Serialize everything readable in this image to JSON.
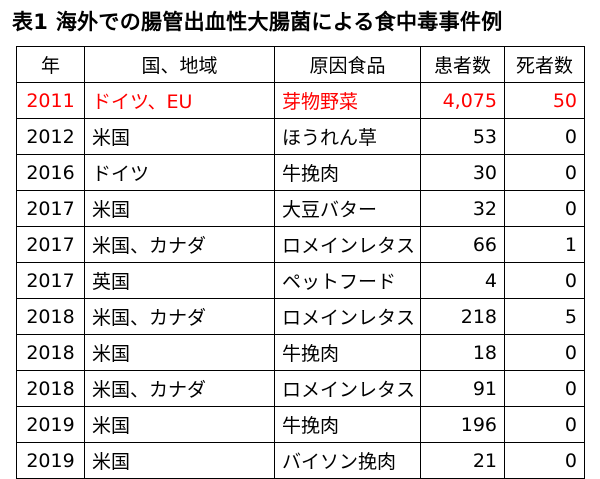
{
  "caption": "表1  海外での腸管出血性大腸菌による食中毒事件例",
  "colors": {
    "highlight": "#ff0000",
    "text": "#000000",
    "border": "#000000"
  },
  "table": {
    "headers": [
      "年",
      "国、地域",
      "原因食品",
      "患者数",
      "死者数"
    ],
    "rows": [
      {
        "year": "2011",
        "country": "ドイツ、EU",
        "food": "芽物野菜",
        "patients": "4,075",
        "deaths": "50",
        "highlight": true
      },
      {
        "year": "2012",
        "country": "米国",
        "food": "ほうれん草",
        "patients": "53",
        "deaths": "0"
      },
      {
        "year": "2016",
        "country": "ドイツ",
        "food": "牛挽肉",
        "patients": "30",
        "deaths": "0"
      },
      {
        "year": "2017",
        "country": "米国",
        "food": "大豆バター",
        "patients": "32",
        "deaths": "0"
      },
      {
        "year": "2017",
        "country": "米国、カナダ",
        "food": "ロメインレタス",
        "patients": "66",
        "deaths": "1"
      },
      {
        "year": "2017",
        "country": "英国",
        "food": "ペットフード",
        "patients": "4",
        "deaths": "0"
      },
      {
        "year": "2018",
        "country": "米国、カナダ",
        "food": "ロメインレタス",
        "patients": "218",
        "deaths": "5"
      },
      {
        "year": "2018",
        "country": "米国",
        "food": "牛挽肉",
        "patients": "18",
        "deaths": "0"
      },
      {
        "year": "2018",
        "country": "米国、カナダ",
        "food": "ロメインレタス",
        "patients": "91",
        "deaths": "0"
      },
      {
        "year": "2019",
        "country": "米国",
        "food": "牛挽肉",
        "patients": "196",
        "deaths": "0"
      },
      {
        "year": "2019",
        "country": "米国",
        "food": "バイソン挽肉",
        "patients": "21",
        "deaths": "0"
      }
    ]
  }
}
